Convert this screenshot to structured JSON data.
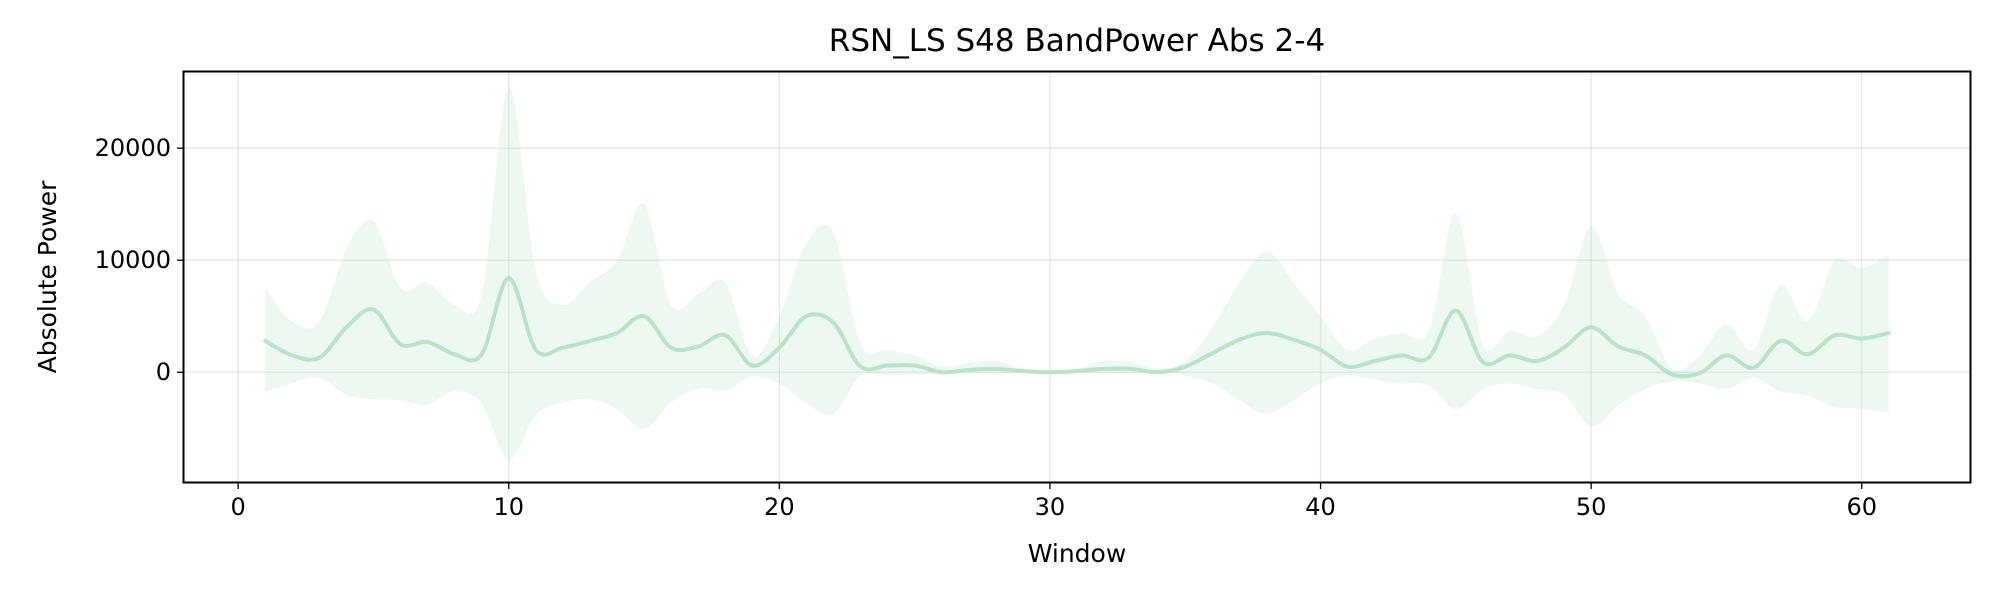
{
  "chart_data": {
    "type": "line",
    "title": "RSN_LS S48 BandPower Abs 2-4",
    "xlabel": "Window",
    "ylabel": "Absolute Power",
    "xlim": [
      -2,
      64
    ],
    "ylim": [
      -9800,
      26800
    ],
    "xticks": [
      0,
      10,
      20,
      30,
      40,
      50,
      60
    ],
    "yticks": [
      0,
      10000,
      20000
    ],
    "grid": true,
    "legend": "none",
    "colors": {
      "line": "#b7e4c7",
      "band": "#b7e4c7"
    },
    "series": [
      {
        "x": [
          1,
          2,
          3,
          4,
          5,
          6,
          7,
          8,
          9,
          10,
          11,
          12,
          13,
          14,
          15,
          16,
          17,
          18,
          19,
          20,
          21,
          22,
          23,
          24,
          25,
          26,
          27,
          28,
          29,
          30,
          31,
          32,
          33,
          34,
          35,
          36,
          37,
          38,
          39,
          40,
          41,
          42,
          43,
          44,
          45,
          46,
          47,
          48,
          49,
          50,
          51,
          52,
          53,
          54,
          55,
          56,
          57,
          58,
          59,
          60,
          61
        ],
        "mean": [
          2800,
          1500,
          1300,
          4000,
          5600,
          2500,
          2700,
          1600,
          1600,
          8400,
          2000,
          2200,
          2800,
          3500,
          5000,
          2200,
          2300,
          3300,
          600,
          2200,
          5000,
          4400,
          500,
          600,
          600,
          0,
          200,
          300,
          100,
          0,
          100,
          300,
          300,
          0,
          500,
          1700,
          2900,
          3500,
          2900,
          2000,
          500,
          1000,
          1500,
          1300,
          5500,
          900,
          1500,
          1000,
          2200,
          4000,
          2300,
          1500,
          -200,
          -100,
          1500,
          400,
          2800,
          1600,
          3300,
          3000,
          3500
        ],
        "upper": [
          7500,
          4500,
          4500,
          11000,
          13500,
          7500,
          8000,
          6000,
          7000,
          25500,
          9000,
          6000,
          8000,
          10000,
          15000,
          6000,
          7000,
          8000,
          1500,
          5000,
          11500,
          12500,
          2500,
          2000,
          1500,
          500,
          800,
          1000,
          300,
          100,
          300,
          1000,
          900,
          300,
          1000,
          4000,
          8000,
          10800,
          8000,
          5000,
          2000,
          3000,
          3500,
          3700,
          14200,
          2500,
          3700,
          3200,
          6000,
          13000,
          7000,
          5000,
          300,
          1500,
          4300,
          2000,
          7800,
          4500,
          10000,
          9300,
          10500
        ],
        "lower": [
          -1800,
          -1000,
          -500,
          -2000,
          -2400,
          -2500,
          -2900,
          -1700,
          -2800,
          -7800,
          -3800,
          -2700,
          -2400,
          -3300,
          -5100,
          -2700,
          -1500,
          -1600,
          -400,
          -1000,
          -2800,
          -3700,
          -300,
          -300,
          -200,
          -100,
          -50,
          -100,
          -30,
          -20,
          -30,
          -100,
          -100,
          -50,
          -300,
          -1000,
          -2500,
          -3700,
          -2500,
          -1000,
          -300,
          -700,
          -1000,
          -1200,
          -3300,
          -1500,
          -1000,
          -1500,
          -2000,
          -4800,
          -3000,
          -1500,
          -800,
          -1000,
          -1500,
          -500,
          -1700,
          -2100,
          -3100,
          -3300,
          -3600
        ]
      }
    ]
  }
}
